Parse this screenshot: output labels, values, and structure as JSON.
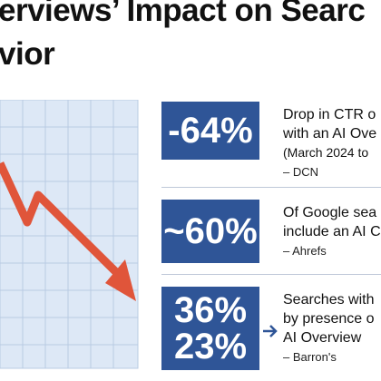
{
  "header": {
    "title_lines": [
      "erviews’ Impact on Searc",
      "vior"
    ]
  },
  "stats": [
    {
      "figures": [
        "-64%"
      ],
      "lines": [
        "Drop in CTR o",
        "with an AI Ove",
        "(March 2024 to"
      ],
      "source": "– DCN"
    },
    {
      "figures": [
        "~60%"
      ],
      "lines": [
        "Of Google sea",
        "include an AI C"
      ],
      "source": "– Ahrefs"
    },
    {
      "figures": [
        "36%",
        "23%"
      ],
      "lines": [
        "Searches with",
        "by presence o",
        "AI Overview"
      ],
      "source": "– Barron's"
    }
  ]
}
